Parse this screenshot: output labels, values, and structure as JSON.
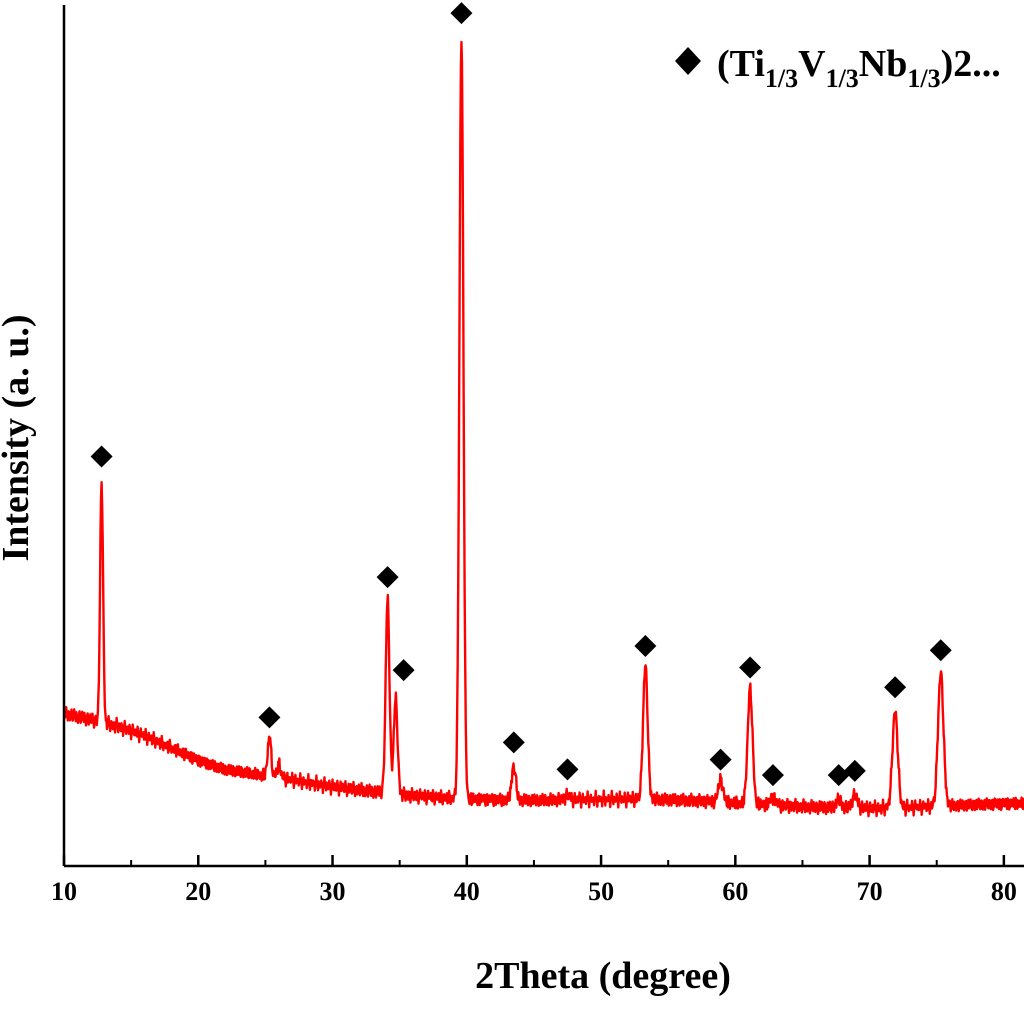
{
  "chart_data": {
    "type": "line",
    "title": "",
    "xlabel": "2Theta (degree)",
    "ylabel": "Intensity (a. u.)",
    "xlim": [
      10,
      81.5
    ],
    "ylim": [
      0,
      100
    ],
    "x_ticks": [
      "10",
      "20",
      "30",
      "40",
      "50",
      "60",
      "70",
      "80"
    ],
    "y_ticks": [],
    "grid": false,
    "legend_position": "top-right",
    "legend": {
      "marker": "diamond",
      "prefix": "(Ti",
      "sub1": "1/3",
      "mid1": "V",
      "sub2": "1/3",
      "mid2": "Nb",
      "sub3": "1/3",
      "suffix": ")2..."
    },
    "line_color": "#ff0000",
    "marker_color": "#000000",
    "series": [
      {
        "baseline": [
          [
            10,
            18.0
          ],
          [
            12,
            17.3
          ],
          [
            14,
            16.5
          ],
          [
            16,
            15.3
          ],
          [
            18,
            13.8
          ],
          [
            20,
            12.2
          ],
          [
            22,
            11.0
          ],
          [
            25,
            10.2
          ],
          [
            30,
            9.0
          ],
          [
            35,
            8.4
          ],
          [
            40,
            8.1
          ],
          [
            45,
            7.8
          ],
          [
            50,
            7.6
          ],
          [
            55,
            7.4
          ],
          [
            60,
            7.2
          ],
          [
            65,
            7.1
          ],
          [
            70,
            7.0
          ],
          [
            75,
            7.0
          ],
          [
            81.5,
            7.0
          ]
        ],
        "peaks": [
          {
            "x": 12.8,
            "y": 45.0,
            "marked": true
          },
          {
            "x": 25.3,
            "y": 14.7,
            "marked": true
          },
          {
            "x": 26.0,
            "y": 11.5,
            "marked": false
          },
          {
            "x": 34.1,
            "y": 31.0,
            "marked": true
          },
          {
            "x": 34.7,
            "y": 19.5,
            "marked": true
          },
          {
            "x": 39.6,
            "y": 96.5,
            "marked": true
          },
          {
            "x": 43.5,
            "y": 11.8,
            "marked": true
          },
          {
            "x": 47.5,
            "y": 8.2,
            "marked": true
          },
          {
            "x": 53.3,
            "y": 23.0,
            "marked": true
          },
          {
            "x": 58.9,
            "y": 9.8,
            "marked": true
          },
          {
            "x": 61.1,
            "y": 20.5,
            "marked": true
          },
          {
            "x": 62.8,
            "y": 8.0,
            "marked": true
          },
          {
            "x": 67.7,
            "y": 8.0,
            "marked": true
          },
          {
            "x": 68.9,
            "y": 8.5,
            "marked": true
          },
          {
            "x": 71.9,
            "y": 18.2,
            "marked": true
          },
          {
            "x": 75.3,
            "y": 22.5,
            "marked": true
          }
        ]
      }
    ]
  }
}
